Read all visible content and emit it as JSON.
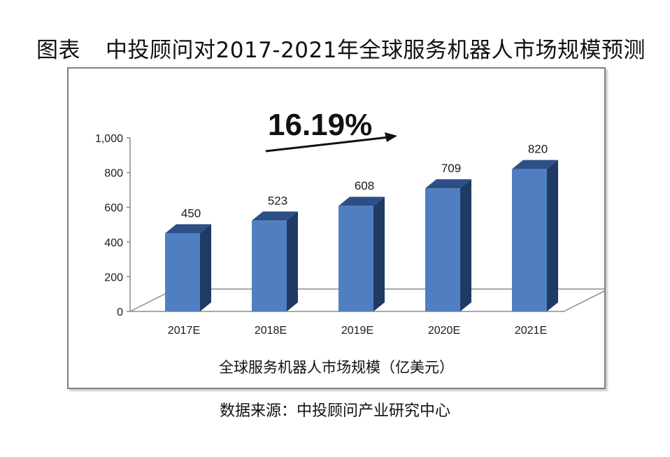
{
  "caption": {
    "prefix": "图表",
    "text": "中投顾问对2017-2021年全球服务机器人市场规模预测"
  },
  "source": "数据来源：中投顾问产业研究中心",
  "chart_data": {
    "type": "bar",
    "categories": [
      "2017E",
      "2018E",
      "2019E",
      "2020E",
      "2021E"
    ],
    "values": [
      450,
      523,
      608,
      709,
      820
    ],
    "data_labels": [
      "450",
      "523",
      "608",
      "709",
      "820"
    ],
    "xlabel": "全球服务机器人市场规模（亿美元）",
    "ylabel": "",
    "ylim": [
      0,
      1000
    ],
    "yticks": [
      0,
      200,
      400,
      600,
      800,
      1000
    ],
    "ytick_labels": [
      "0",
      "200",
      "400",
      "600",
      "800",
      "1,000"
    ],
    "annotation": "16.19%",
    "style": "3d-column",
    "grid": false,
    "colors": {
      "bar_front": "#4f7fc1",
      "bar_side": "#1f3a63",
      "bar_top": "#2c4f86",
      "floor": "#8c8c8c"
    }
  }
}
